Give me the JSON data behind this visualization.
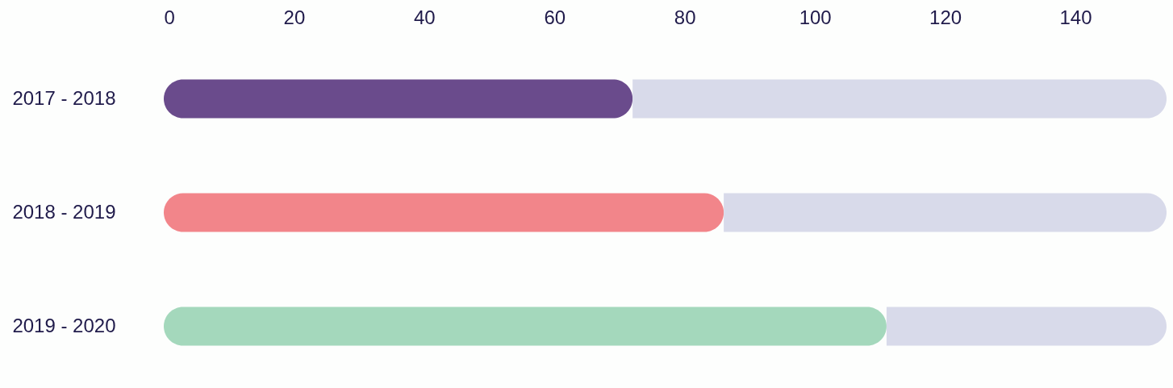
{
  "chart_data": {
    "type": "bar",
    "orientation": "horizontal",
    "stacked": true,
    "categories": [
      "2017 - 2018",
      "2018 - 2019",
      "2019 - 2020"
    ],
    "series": [
      {
        "values": [
          72,
          86,
          111
        ],
        "colors": [
          "#6a4b8c",
          "#f2858a",
          "#a4d8bc"
        ]
      },
      {
        "values": [
          82,
          68,
          43
        ],
        "color": "#d8daea"
      }
    ],
    "xlim": [
      0,
      154
    ],
    "xticks": [
      0,
      20,
      40,
      60,
      80,
      100,
      120,
      140
    ],
    "grid": false
  }
}
